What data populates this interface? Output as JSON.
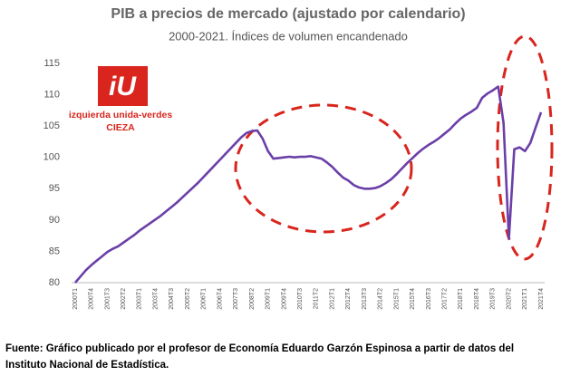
{
  "chart_data": {
    "type": "line",
    "title": "PIB a precios de mercado (ajustado por calendario)",
    "subtitle": "2000-2021. Índices de volumen encandenado",
    "categories": [
      "2000T1",
      null,
      null,
      "2000T4",
      null,
      null,
      "2001T3",
      null,
      null,
      "2002T2",
      null,
      null,
      "2003T1",
      null,
      null,
      "2003T4",
      null,
      null,
      "2004T3",
      null,
      null,
      "2005T2",
      null,
      null,
      "2006T1",
      null,
      null,
      "2006T4",
      null,
      null,
      "2007T3",
      null,
      null,
      "2008T2",
      null,
      null,
      "2009T1",
      null,
      null,
      "2009T4",
      null,
      null,
      "2010T3",
      null,
      null,
      "2011T2",
      null,
      null,
      "2012T1",
      null,
      null,
      "2012T4",
      null,
      null,
      "2013T3",
      null,
      null,
      "2014T2",
      null,
      null,
      "2015T1",
      null,
      null,
      "2015T4",
      null,
      null,
      "2016T3",
      null,
      null,
      "2017T2",
      null,
      null,
      "2018T1",
      null,
      null,
      "2018T4",
      null,
      null,
      "2019T3",
      null,
      null,
      "2020T2",
      null,
      null,
      "2021T1",
      null,
      null,
      "2021T4"
    ],
    "values": [
      80.0,
      81.0,
      82.0,
      82.8,
      83.5,
      84.2,
      84.9,
      85.4,
      85.8,
      86.4,
      87.0,
      87.6,
      88.3,
      88.9,
      89.5,
      90.1,
      90.7,
      91.4,
      92.1,
      92.8,
      93.6,
      94.4,
      95.2,
      96.0,
      96.9,
      97.8,
      98.7,
      99.6,
      100.5,
      101.4,
      102.3,
      103.2,
      103.9,
      104.2,
      104.3,
      103.0,
      101.0,
      99.8,
      99.9,
      100.0,
      100.1,
      100.0,
      100.1,
      100.1,
      100.2,
      100.0,
      99.8,
      99.2,
      98.5,
      97.6,
      96.8,
      96.3,
      95.6,
      95.2,
      95.0,
      95.0,
      95.1,
      95.4,
      95.9,
      96.5,
      97.3,
      98.2,
      99.1,
      99.9,
      100.7,
      101.4,
      102.0,
      102.5,
      103.1,
      103.8,
      104.5,
      105.4,
      106.2,
      106.8,
      107.3,
      107.9,
      109.5,
      110.2,
      110.7,
      111.3,
      105.5,
      87.0,
      101.3,
      101.6,
      101.0,
      102.3,
      104.8,
      107.2
    ],
    "color": "#6b3fa8",
    "ylim": [
      80,
      115
    ],
    "yticks": [
      80,
      85,
      90,
      95,
      100,
      105,
      110,
      115
    ],
    "grid": false
  },
  "logo": {
    "line1": "izquierda unida-verdes",
    "line2": "CIEZA"
  },
  "caption": {
    "line1": "Fuente: Gráfico publicado por el profesor de Economía Eduardo Garzón Espinosa a partir  de datos del",
    "line2": "Instituto Nacional de Estadística."
  }
}
